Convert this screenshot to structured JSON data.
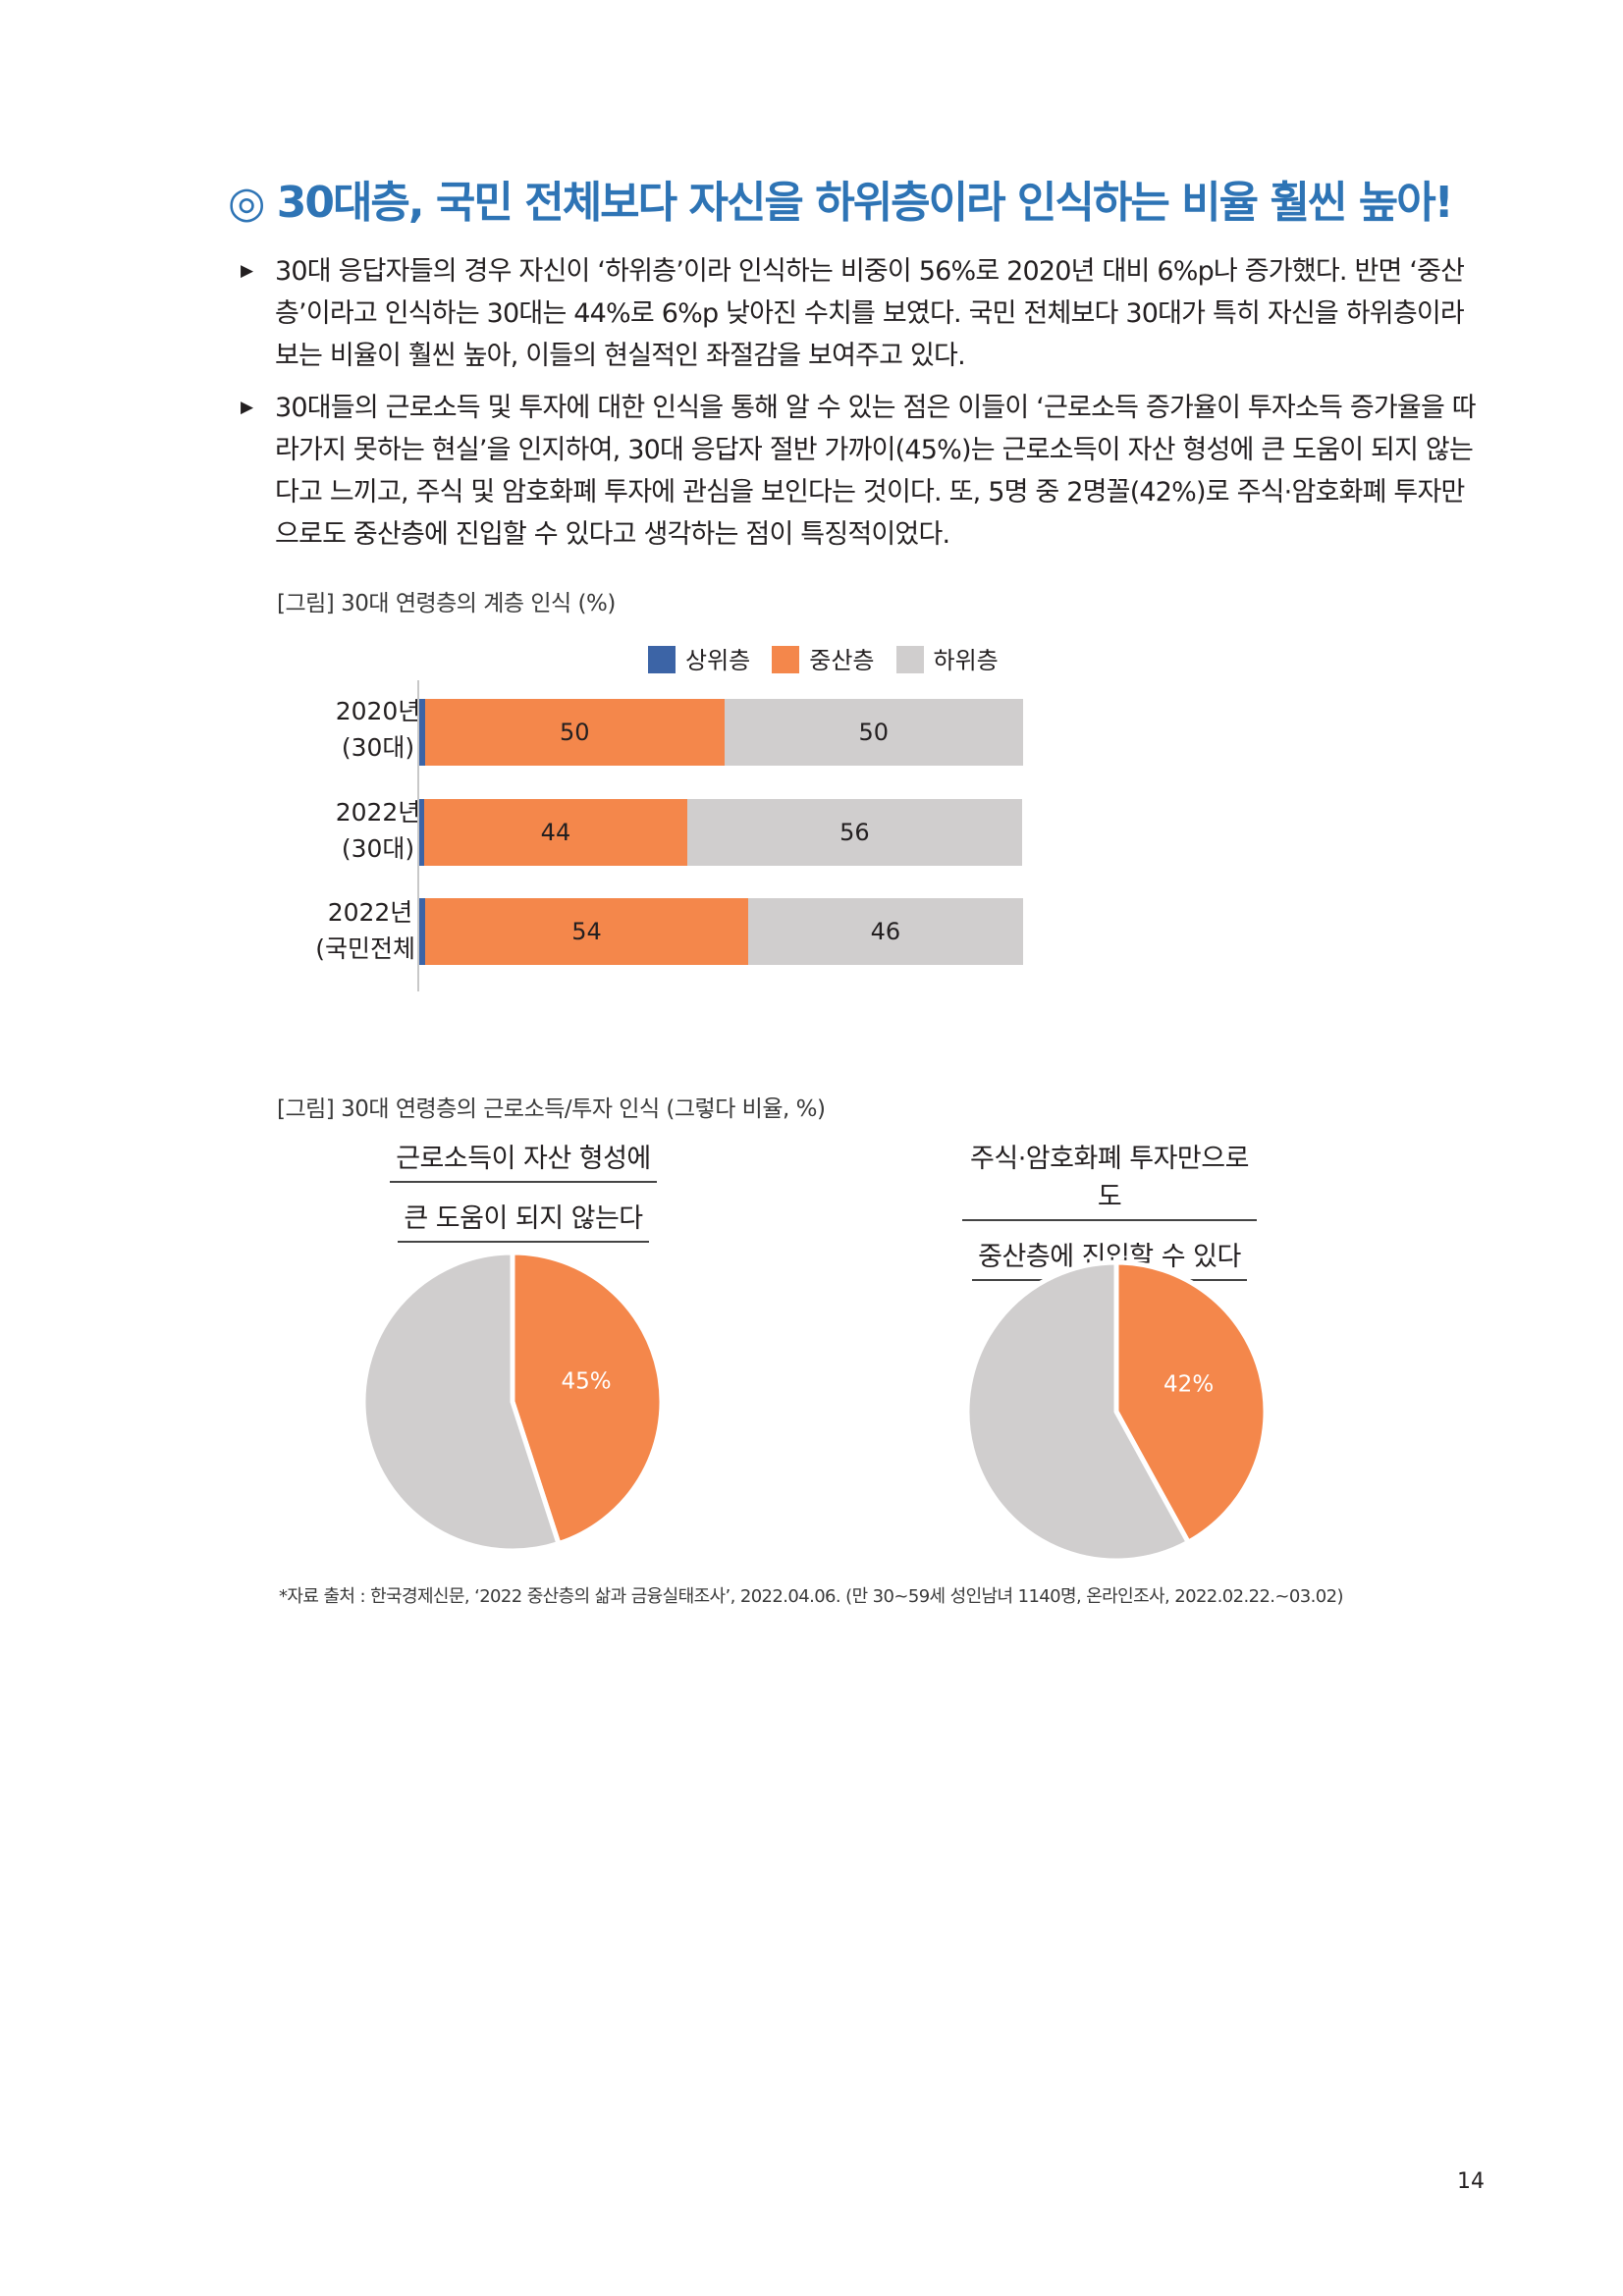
{
  "title": "◎ 30대층, 국민 전체보다 자신을 하위층이라 인식하는 비율 훨씬 높아!",
  "bullets": [
    "30대 응답자들의 경우 자신이 ‘하위층’이라 인식하는 비중이 56%로 2020년 대비 6%p나 증가했다. 반면 ‘중산층’이라고 인식하는 30대는 44%로 6%p 낮아진 수치를 보였다. 국민 전체보다 30대가 특히 자신을 하위층이라 보는 비율이 훨씬 높아, 이들의 현실적인 좌절감을 보여주고 있다.",
    "30대들의 근로소득 및 투자에 대한 인식을 통해 알 수 있는 점은 이들이 ‘근로소득 증가율이 투자소득 증가율을 따라가지 못하는 현실’을 인지하여, 30대 응답자 절반 가까이(45%)는 근로소득이 자산 형성에 큰 도움이 되지 않는다고 느끼고, 주식 및 암호화폐 투자에 관심을 보인다는 것이다. 또, 5명 중 2명꼴(42%)로 주식·암호화폐 투자만으로도 중산층에 진입할 수 있다고 생각하는 점이 특징적이었다."
  ],
  "bullet_marker": "▶",
  "captions": {
    "bar": "[그림] 30대 연령층의 계층 인식 (%)",
    "pie": "[그림] 30대 연령층의 근로소득/투자 인식 (그렇다 비율, %)"
  },
  "footnote": "*자료 출처 : 한국경제신문, ‘2022 중산층의 삶과 금융실태조사’, 2022.04.06. (만 30~59세 성인남녀 1140명, 온라인조사, 2022.02.22.~03.02)",
  "page_number": "14",
  "chart_data": [
    {
      "type": "bar",
      "orientation": "horizontal",
      "stacked": true,
      "categories": [
        "2020년\n(30대)",
        "2022년\n(30대)",
        "2022년\n(국민전체)"
      ],
      "series": [
        {
          "name": "상위층",
          "values": [
            1,
            0.4,
            1
          ],
          "color": "#3c64a6"
        },
        {
          "name": "중산층",
          "values": [
            50,
            44,
            54
          ],
          "color": "#f4874b"
        },
        {
          "name": "하위층",
          "values": [
            50,
            56,
            46
          ],
          "color": "#d0cece"
        }
      ],
      "data_labels": [
        [
          "1",
          "50",
          "50"
        ],
        [
          "0.4",
          "44",
          "56"
        ],
        [
          "1",
          "54",
          "46"
        ]
      ],
      "xlim": [
        0,
        101
      ],
      "legend_position": "top"
    },
    {
      "type": "pie",
      "title": [
        "근로소득이 자산 형성에",
        "큰 도움이 되지 않는다"
      ],
      "values": [
        45,
        55
      ],
      "labels": [
        "45%",
        ""
      ],
      "colors": [
        "#f4874b",
        "#d0cece"
      ]
    },
    {
      "type": "pie",
      "title": [
        "주식·암호화폐 투자만으로도",
        "중산층에 진입할 수 있다"
      ],
      "values": [
        42,
        58
      ],
      "labels": [
        "42%",
        ""
      ],
      "colors": [
        "#f4874b",
        "#d0cece"
      ]
    }
  ]
}
